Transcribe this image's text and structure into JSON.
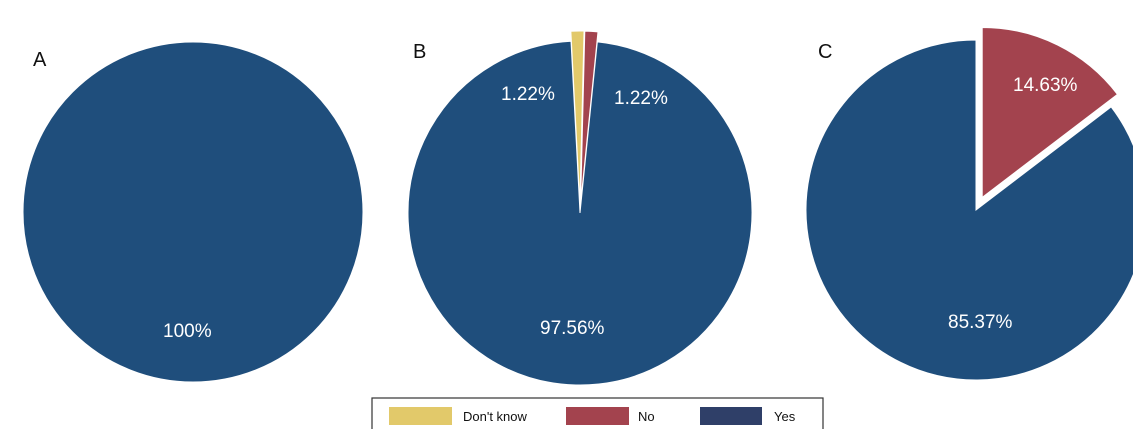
{
  "chart_data": [
    {
      "type": "pie",
      "panel": "A",
      "slices": [
        {
          "category": "Yes",
          "value": 100,
          "label": "100%"
        }
      ]
    },
    {
      "type": "pie",
      "panel": "B",
      "slices": [
        {
          "category": "Don't know",
          "value": 1.22,
          "label": "1.22%",
          "exploded": true
        },
        {
          "category": "No",
          "value": 1.22,
          "label": "1.22%",
          "exploded": true
        },
        {
          "category": "Yes",
          "value": 97.56,
          "label": "97.56%"
        }
      ]
    },
    {
      "type": "pie",
      "panel": "C",
      "slices": [
        {
          "category": "No",
          "value": 14.63,
          "label": "14.63%",
          "exploded": true
        },
        {
          "category": "Yes",
          "value": 85.37,
          "label": "85.37%"
        }
      ]
    }
  ],
  "legend": {
    "placement": "bottom-center",
    "items": [
      {
        "label": "Don't know",
        "color": "#e2c96a"
      },
      {
        "label": "No",
        "color": "#a3434e"
      },
      {
        "label": "Yes",
        "color": "#1f4e7c"
      }
    ]
  },
  "colors": {
    "Don't know": "#e2c96a",
    "No": "#a3434e",
    "Yes": "#1f4e7c",
    "legend_yes_swatch": "#2f3f68"
  }
}
